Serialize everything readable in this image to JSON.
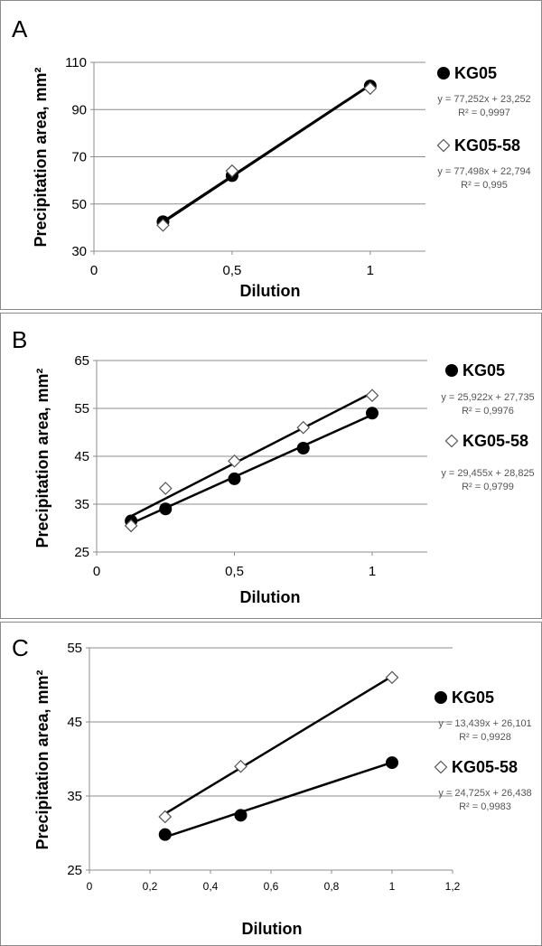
{
  "chart_data": [
    {
      "panel": "A",
      "type": "scatter",
      "xlabel": "Dilution",
      "ylabel": "Precipitation area, mm²",
      "xlim": [
        0,
        1.2
      ],
      "ylim": [
        30,
        110
      ],
      "x_ticks": [
        0,
        0.5,
        1
      ],
      "x_tick_labels": [
        "0",
        "0,5",
        "1"
      ],
      "y_ticks": [
        30,
        50,
        70,
        90,
        110
      ],
      "y_tick_labels": [
        "30",
        "50",
        "70",
        "90",
        "110"
      ],
      "grid": "horizontal",
      "legend_position": "right",
      "series": [
        {
          "name": "KG05",
          "marker": "circle-filled",
          "x": [
            0.25,
            0.5,
            1
          ],
          "y": [
            42.5,
            62,
            100
          ],
          "trendline": [
            77.252,
            23.252
          ],
          "equation": "y = 77,252x + 23,252",
          "r2": "R² = 0,9997"
        },
        {
          "name": "KG05-58",
          "marker": "diamond-open",
          "x": [
            0.25,
            0.5,
            1
          ],
          "y": [
            41,
            64,
            99
          ],
          "trendline": [
            77.498,
            22.794
          ],
          "equation": "y = 77,498x + 22,794",
          "r2": "R² = 0,995"
        }
      ]
    },
    {
      "panel": "B",
      "type": "scatter",
      "xlabel": "Dilution",
      "ylabel": "Precipitation area, mm²",
      "xlim": [
        0,
        1.2
      ],
      "ylim": [
        25,
        65
      ],
      "x_ticks": [
        0,
        0.5,
        1
      ],
      "x_tick_labels": [
        "0",
        "0,5",
        "1"
      ],
      "y_ticks": [
        25,
        35,
        45,
        55,
        65
      ],
      "y_tick_labels": [
        "25",
        "35",
        "45",
        "55",
        "65"
      ],
      "grid": "horizontal",
      "legend_position": "right",
      "series": [
        {
          "name": "KG05",
          "marker": "circle-filled",
          "x": [
            0.125,
            0.25,
            0.5,
            0.75,
            1
          ],
          "y": [
            31.5,
            34,
            40.3,
            46.7,
            54
          ],
          "trendline": [
            25.922,
            27.735
          ],
          "equation": "y = 25,922x + 27,735",
          "r2": "R² = 0,9976"
        },
        {
          "name": "KG05-58",
          "marker": "diamond-open",
          "x": [
            0.125,
            0.25,
            0.5,
            0.75,
            1
          ],
          "y": [
            30.5,
            38.3,
            44,
            51,
            57.7
          ],
          "trendline": [
            29.455,
            28.825
          ],
          "equation": "y = 29,455x + 28,825",
          "r2": "R² = 0,9799"
        }
      ]
    },
    {
      "panel": "C",
      "type": "scatter",
      "xlabel": "Dilution",
      "ylabel": "Precipitation area, mm²",
      "xlim": [
        0,
        1.2
      ],
      "ylim": [
        25,
        55
      ],
      "x_ticks": [
        0,
        0.2,
        0.4,
        0.6,
        0.8,
        1,
        1.2
      ],
      "x_tick_labels": [
        "0",
        "0,2",
        "0,4",
        "0,6",
        "0,8",
        "1",
        "1,2"
      ],
      "y_ticks": [
        25,
        35,
        45,
        55
      ],
      "y_tick_labels": [
        "25",
        "35",
        "45",
        "55"
      ],
      "grid": "horizontal",
      "legend_position": "right",
      "series": [
        {
          "name": "KG05",
          "marker": "circle-filled",
          "x": [
            0.25,
            0.5,
            1
          ],
          "y": [
            29.8,
            32.4,
            39.5
          ],
          "trendline": [
            13.439,
            26.101
          ],
          "equation": "y = 13,439x + 26,101",
          "r2": "R² = 0,9928"
        },
        {
          "name": "KG05-58",
          "marker": "diamond-open",
          "x": [
            0.25,
            0.5,
            1
          ],
          "y": [
            32.2,
            39,
            51
          ],
          "trendline": [
            24.725,
            26.438
          ],
          "equation": "y = 24,725x + 26,438",
          "r2": "R² = 0,9983"
        }
      ]
    }
  ]
}
